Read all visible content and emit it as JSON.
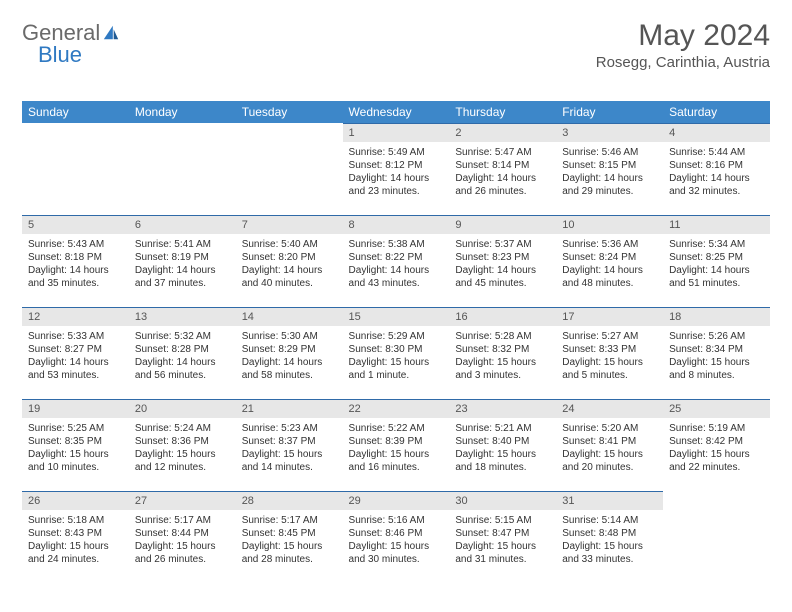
{
  "logo": {
    "text1": "General",
    "text2": "Blue"
  },
  "title": "May 2024",
  "location": "Rosegg, Carinthia, Austria",
  "weekdays": [
    "Sunday",
    "Monday",
    "Tuesday",
    "Wednesday",
    "Thursday",
    "Friday",
    "Saturday"
  ],
  "colors": {
    "header_bg": "#3d87c9",
    "header_text": "#ffffff",
    "daynum_bg": "#e7e7e7",
    "daynum_text": "#555555",
    "cell_border": "#2f6aa8",
    "body_text": "#333333",
    "title_text": "#555555",
    "logo_general": "#6a6a6a",
    "logo_blue": "#2f79c2"
  },
  "weeks": [
    [
      {
        "n": "",
        "sr": "",
        "ss": "",
        "dl": ""
      },
      {
        "n": "",
        "sr": "",
        "ss": "",
        "dl": ""
      },
      {
        "n": "",
        "sr": "",
        "ss": "",
        "dl": ""
      },
      {
        "n": "1",
        "sr": "Sunrise: 5:49 AM",
        "ss": "Sunset: 8:12 PM",
        "dl": "Daylight: 14 hours and 23 minutes."
      },
      {
        "n": "2",
        "sr": "Sunrise: 5:47 AM",
        "ss": "Sunset: 8:14 PM",
        "dl": "Daylight: 14 hours and 26 minutes."
      },
      {
        "n": "3",
        "sr": "Sunrise: 5:46 AM",
        "ss": "Sunset: 8:15 PM",
        "dl": "Daylight: 14 hours and 29 minutes."
      },
      {
        "n": "4",
        "sr": "Sunrise: 5:44 AM",
        "ss": "Sunset: 8:16 PM",
        "dl": "Daylight: 14 hours and 32 minutes."
      }
    ],
    [
      {
        "n": "5",
        "sr": "Sunrise: 5:43 AM",
        "ss": "Sunset: 8:18 PM",
        "dl": "Daylight: 14 hours and 35 minutes."
      },
      {
        "n": "6",
        "sr": "Sunrise: 5:41 AM",
        "ss": "Sunset: 8:19 PM",
        "dl": "Daylight: 14 hours and 37 minutes."
      },
      {
        "n": "7",
        "sr": "Sunrise: 5:40 AM",
        "ss": "Sunset: 8:20 PM",
        "dl": "Daylight: 14 hours and 40 minutes."
      },
      {
        "n": "8",
        "sr": "Sunrise: 5:38 AM",
        "ss": "Sunset: 8:22 PM",
        "dl": "Daylight: 14 hours and 43 minutes."
      },
      {
        "n": "9",
        "sr": "Sunrise: 5:37 AM",
        "ss": "Sunset: 8:23 PM",
        "dl": "Daylight: 14 hours and 45 minutes."
      },
      {
        "n": "10",
        "sr": "Sunrise: 5:36 AM",
        "ss": "Sunset: 8:24 PM",
        "dl": "Daylight: 14 hours and 48 minutes."
      },
      {
        "n": "11",
        "sr": "Sunrise: 5:34 AM",
        "ss": "Sunset: 8:25 PM",
        "dl": "Daylight: 14 hours and 51 minutes."
      }
    ],
    [
      {
        "n": "12",
        "sr": "Sunrise: 5:33 AM",
        "ss": "Sunset: 8:27 PM",
        "dl": "Daylight: 14 hours and 53 minutes."
      },
      {
        "n": "13",
        "sr": "Sunrise: 5:32 AM",
        "ss": "Sunset: 8:28 PM",
        "dl": "Daylight: 14 hours and 56 minutes."
      },
      {
        "n": "14",
        "sr": "Sunrise: 5:30 AM",
        "ss": "Sunset: 8:29 PM",
        "dl": "Daylight: 14 hours and 58 minutes."
      },
      {
        "n": "15",
        "sr": "Sunrise: 5:29 AM",
        "ss": "Sunset: 8:30 PM",
        "dl": "Daylight: 15 hours and 1 minute."
      },
      {
        "n": "16",
        "sr": "Sunrise: 5:28 AM",
        "ss": "Sunset: 8:32 PM",
        "dl": "Daylight: 15 hours and 3 minutes."
      },
      {
        "n": "17",
        "sr": "Sunrise: 5:27 AM",
        "ss": "Sunset: 8:33 PM",
        "dl": "Daylight: 15 hours and 5 minutes."
      },
      {
        "n": "18",
        "sr": "Sunrise: 5:26 AM",
        "ss": "Sunset: 8:34 PM",
        "dl": "Daylight: 15 hours and 8 minutes."
      }
    ],
    [
      {
        "n": "19",
        "sr": "Sunrise: 5:25 AM",
        "ss": "Sunset: 8:35 PM",
        "dl": "Daylight: 15 hours and 10 minutes."
      },
      {
        "n": "20",
        "sr": "Sunrise: 5:24 AM",
        "ss": "Sunset: 8:36 PM",
        "dl": "Daylight: 15 hours and 12 minutes."
      },
      {
        "n": "21",
        "sr": "Sunrise: 5:23 AM",
        "ss": "Sunset: 8:37 PM",
        "dl": "Daylight: 15 hours and 14 minutes."
      },
      {
        "n": "22",
        "sr": "Sunrise: 5:22 AM",
        "ss": "Sunset: 8:39 PM",
        "dl": "Daylight: 15 hours and 16 minutes."
      },
      {
        "n": "23",
        "sr": "Sunrise: 5:21 AM",
        "ss": "Sunset: 8:40 PM",
        "dl": "Daylight: 15 hours and 18 minutes."
      },
      {
        "n": "24",
        "sr": "Sunrise: 5:20 AM",
        "ss": "Sunset: 8:41 PM",
        "dl": "Daylight: 15 hours and 20 minutes."
      },
      {
        "n": "25",
        "sr": "Sunrise: 5:19 AM",
        "ss": "Sunset: 8:42 PM",
        "dl": "Daylight: 15 hours and 22 minutes."
      }
    ],
    [
      {
        "n": "26",
        "sr": "Sunrise: 5:18 AM",
        "ss": "Sunset: 8:43 PM",
        "dl": "Daylight: 15 hours and 24 minutes."
      },
      {
        "n": "27",
        "sr": "Sunrise: 5:17 AM",
        "ss": "Sunset: 8:44 PM",
        "dl": "Daylight: 15 hours and 26 minutes."
      },
      {
        "n": "28",
        "sr": "Sunrise: 5:17 AM",
        "ss": "Sunset: 8:45 PM",
        "dl": "Daylight: 15 hours and 28 minutes."
      },
      {
        "n": "29",
        "sr": "Sunrise: 5:16 AM",
        "ss": "Sunset: 8:46 PM",
        "dl": "Daylight: 15 hours and 30 minutes."
      },
      {
        "n": "30",
        "sr": "Sunrise: 5:15 AM",
        "ss": "Sunset: 8:47 PM",
        "dl": "Daylight: 15 hours and 31 minutes."
      },
      {
        "n": "31",
        "sr": "Sunrise: 5:14 AM",
        "ss": "Sunset: 8:48 PM",
        "dl": "Daylight: 15 hours and 33 minutes."
      },
      {
        "n": "",
        "sr": "",
        "ss": "",
        "dl": ""
      }
    ]
  ]
}
